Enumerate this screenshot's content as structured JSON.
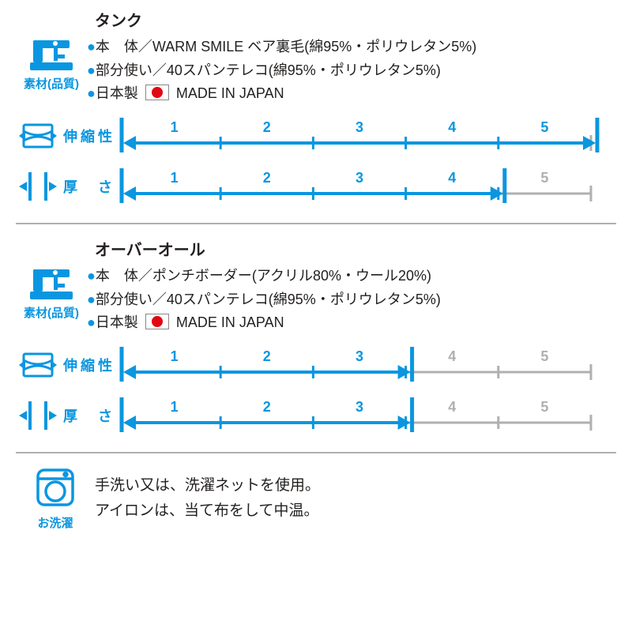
{
  "colors": {
    "primary": "#0a96e0",
    "inactive": "#aeb0b2",
    "text": "#221f1e"
  },
  "labels": {
    "material": "素材(品質)",
    "stretch": "伸縮性",
    "thickness": "厚　さ",
    "wash": "お洗濯",
    "made_in": "MADE IN JAPAN",
    "japan": "日本製"
  },
  "scale": {
    "max": 5,
    "tick_labels": [
      "1",
      "2",
      "3",
      "4",
      "5"
    ],
    "label_fontsize": 18,
    "label_fontweight": "bold",
    "line_width": 3,
    "arrow_size": 14
  },
  "products": [
    {
      "title": "タンク",
      "lines": [
        "本　体／WARM SMILE ベア裏毛(綿95%・ポリウレタン5%)",
        "部分使い／40スパンテレコ(綿95%・ポリウレタン5%)"
      ],
      "stretch": 5,
      "thickness": 4
    },
    {
      "title": "オーバーオール",
      "lines": [
        "本　体／ポンチボーダー(アクリル80%・ウール20%)",
        "部分使い／40スパンテレコ(綿95%・ポリウレタン5%)"
      ],
      "stretch": 3,
      "thickness": 3
    }
  ],
  "wash": {
    "line1": "手洗い又は、洗濯ネットを使用。",
    "line2": "アイロンは、当て布をして中温。"
  }
}
